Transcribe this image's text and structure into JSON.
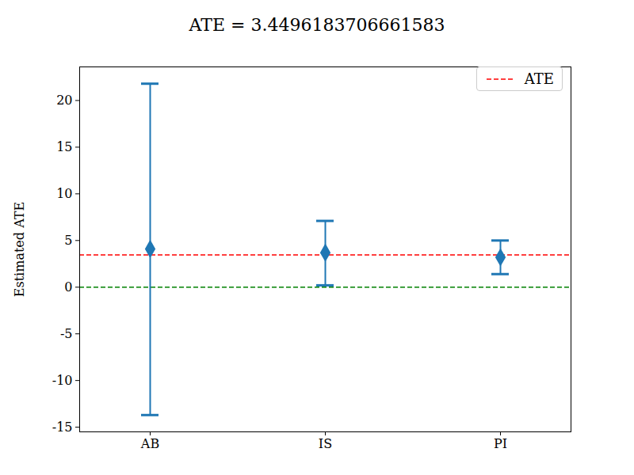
{
  "chart_data": {
    "type": "errorbar",
    "title": "ATE = 3.4496183706661583",
    "y_label": "Estimated ATE",
    "categories": [
      "AB",
      "IS",
      "PI"
    ],
    "values": [
      4.1,
      3.7,
      3.2
    ],
    "lower": [
      -13.7,
      0.2,
      1.4
    ],
    "upper": [
      21.8,
      7.1,
      5.0
    ],
    "color": "#1f77b4",
    "marker": "diamond",
    "reference_lines": [
      {
        "name": "ATE",
        "value": 3.4496183706661583,
        "color": "#ff0000",
        "line_style": "dashed"
      },
      {
        "value": 0,
        "color": "#008000",
        "line_style": "dashed"
      }
    ],
    "legend": "upper right",
    "ylim": [
      -15.5,
      23.6
    ],
    "yticks": [
      -15,
      -10,
      -5,
      0,
      5,
      10,
      15,
      20
    ],
    "grid": false
  }
}
